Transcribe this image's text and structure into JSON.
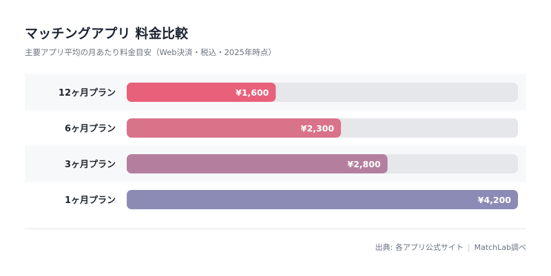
{
  "header": {
    "title": "マッチングアプリ 料金比較",
    "subtitle": "主要アプリ平均の月あたり料金目安（Web決済・税込・2025年時点）"
  },
  "footer": {
    "source_label": "出典: 各アプリ公式サイト",
    "separator": "|",
    "source_org": "MatchLab調べ"
  },
  "colors": {
    "track": "#e6e7eb",
    "stripe": "#f7f8fa",
    "bars": [
      "#e8607a",
      "#d97389",
      "#b47f9f",
      "#8c8bb6"
    ],
    "value_text": "#ffffff",
    "label_text": "#1f2430"
  },
  "chart_data": {
    "type": "bar",
    "orientation": "horizontal",
    "categories": [
      "12ヶ月プラン",
      "6ヶ月プラン",
      "3ヶ月プラン",
      "1ヶ月プラン"
    ],
    "values": [
      1600,
      2300,
      2800,
      4200
    ],
    "value_labels": [
      "¥1,600",
      "¥2,300",
      "¥2,800",
      "¥4,200"
    ],
    "xlim": [
      0,
      4200
    ],
    "unit": "円/月",
    "grid": false,
    "legend": "none"
  }
}
